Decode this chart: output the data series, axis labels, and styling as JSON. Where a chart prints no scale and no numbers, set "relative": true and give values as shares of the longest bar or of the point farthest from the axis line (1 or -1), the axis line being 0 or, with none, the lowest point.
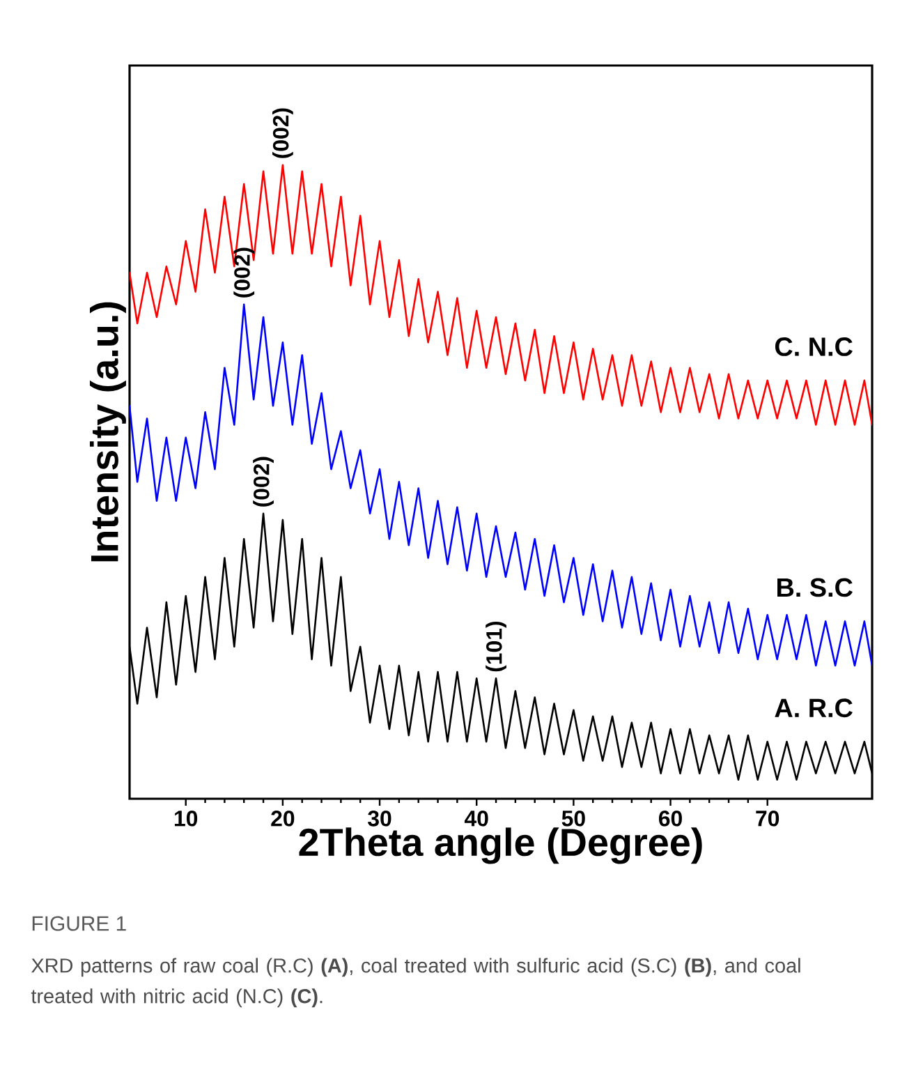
{
  "chart_data": {
    "type": "line",
    "relative": true,
    "xlabel": "2Theta angle (Degree)",
    "ylabel": "Intensity (a.u.)",
    "xlim": [
      4.2,
      80.8
    ],
    "xticks": [
      10,
      20,
      30,
      40,
      50,
      60,
      70
    ],
    "tick_labels": "x",
    "series": [
      {
        "name": "C. N.C",
        "color": "#ff0000",
        "x": [
          4.2,
          5,
          6,
          7,
          8,
          9,
          10,
          11,
          12,
          13,
          14,
          15,
          16,
          17,
          18,
          19,
          20,
          21,
          22,
          23,
          24,
          25,
          26,
          27,
          28,
          29,
          30,
          31,
          32,
          33,
          34,
          35,
          36,
          37,
          38,
          39,
          40,
          41,
          42,
          43,
          44,
          45,
          46,
          47,
          48,
          49,
          50,
          51,
          52,
          53,
          54,
          55,
          56,
          57,
          58,
          59,
          60,
          61,
          62,
          63,
          64,
          65,
          66,
          67,
          68,
          69,
          70,
          71,
          72,
          73,
          74,
          75,
          76,
          77,
          78,
          79,
          80,
          80.8
        ],
        "values": [
          0.83,
          0.75,
          0.83,
          0.76,
          0.84,
          0.78,
          0.88,
          0.8,
          0.93,
          0.83,
          0.95,
          0.84,
          0.97,
          0.85,
          0.99,
          0.86,
          1.0,
          0.86,
          0.99,
          0.86,
          0.97,
          0.84,
          0.95,
          0.81,
          0.92,
          0.78,
          0.88,
          0.76,
          0.85,
          0.73,
          0.82,
          0.72,
          0.8,
          0.7,
          0.79,
          0.68,
          0.77,
          0.68,
          0.76,
          0.67,
          0.75,
          0.66,
          0.74,
          0.64,
          0.73,
          0.64,
          0.72,
          0.63,
          0.71,
          0.63,
          0.7,
          0.62,
          0.7,
          0.62,
          0.69,
          0.61,
          0.68,
          0.61,
          0.68,
          0.61,
          0.67,
          0.6,
          0.67,
          0.6,
          0.66,
          0.6,
          0.66,
          0.6,
          0.66,
          0.6,
          0.66,
          0.59,
          0.66,
          0.59,
          0.66,
          0.59,
          0.66,
          0.59
        ]
      },
      {
        "name": "B. S.C",
        "color": "#0000ff",
        "x": [
          4.2,
          5,
          6,
          7,
          8,
          9,
          10,
          11,
          12,
          13,
          14,
          15,
          16,
          17,
          18,
          19,
          20,
          21,
          22,
          23,
          24,
          25,
          26,
          27,
          28,
          29,
          30,
          31,
          32,
          33,
          34,
          35,
          36,
          37,
          38,
          39,
          40,
          41,
          42,
          43,
          44,
          45,
          46,
          47,
          48,
          49,
          50,
          51,
          52,
          53,
          54,
          55,
          56,
          57,
          58,
          59,
          60,
          61,
          62,
          63,
          64,
          65,
          66,
          67,
          68,
          69,
          70,
          71,
          72,
          73,
          74,
          75,
          76,
          77,
          78,
          79,
          80,
          80.8
        ],
        "values": [
          0.62,
          0.5,
          0.6,
          0.47,
          0.57,
          0.47,
          0.57,
          0.49,
          0.61,
          0.52,
          0.68,
          0.59,
          0.78,
          0.63,
          0.76,
          0.62,
          0.72,
          0.59,
          0.7,
          0.56,
          0.64,
          0.52,
          0.58,
          0.49,
          0.55,
          0.45,
          0.52,
          0.41,
          0.5,
          0.4,
          0.49,
          0.38,
          0.47,
          0.37,
          0.46,
          0.36,
          0.45,
          0.35,
          0.43,
          0.35,
          0.42,
          0.33,
          0.41,
          0.32,
          0.4,
          0.31,
          0.38,
          0.29,
          0.37,
          0.28,
          0.36,
          0.27,
          0.35,
          0.26,
          0.34,
          0.25,
          0.33,
          0.24,
          0.32,
          0.24,
          0.31,
          0.23,
          0.31,
          0.23,
          0.3,
          0.22,
          0.29,
          0.22,
          0.29,
          0.22,
          0.29,
          0.21,
          0.28,
          0.21,
          0.28,
          0.21,
          0.28,
          0.21
        ]
      },
      {
        "name": "A. R.C",
        "color": "#000000",
        "x": [
          4.2,
          5,
          6,
          7,
          8,
          9,
          10,
          11,
          12,
          13,
          14,
          15,
          16,
          17,
          18,
          19,
          20,
          21,
          22,
          23,
          24,
          25,
          26,
          27,
          28,
          29,
          30,
          31,
          32,
          33,
          34,
          35,
          36,
          37,
          38,
          39,
          40,
          41,
          42,
          43,
          44,
          45,
          46,
          47,
          48,
          49,
          50,
          51,
          52,
          53,
          54,
          55,
          56,
          57,
          58,
          59,
          60,
          61,
          62,
          63,
          64,
          65,
          66,
          67,
          68,
          69,
          70,
          71,
          72,
          73,
          74,
          75,
          76,
          77,
          78,
          79,
          80,
          80.8
        ],
        "values": [
          0.24,
          0.15,
          0.27,
          0.16,
          0.31,
          0.18,
          0.32,
          0.2,
          0.35,
          0.22,
          0.38,
          0.24,
          0.41,
          0.27,
          0.45,
          0.28,
          0.44,
          0.26,
          0.41,
          0.22,
          0.38,
          0.21,
          0.35,
          0.17,
          0.24,
          0.12,
          0.21,
          0.11,
          0.21,
          0.1,
          0.2,
          0.09,
          0.2,
          0.09,
          0.2,
          0.09,
          0.19,
          0.09,
          0.19,
          0.08,
          0.17,
          0.08,
          0.16,
          0.07,
          0.15,
          0.07,
          0.14,
          0.06,
          0.13,
          0.06,
          0.13,
          0.05,
          0.12,
          0.05,
          0.12,
          0.04,
          0.11,
          0.04,
          0.11,
          0.04,
          0.1,
          0.04,
          0.1,
          0.03,
          0.1,
          0.03,
          0.09,
          0.03,
          0.09,
          0.03,
          0.09,
          0.04,
          0.09,
          0.04,
          0.09,
          0.04,
          0.09,
          0.04
        ]
      }
    ],
    "annotations": [
      {
        "text": "(002)",
        "x": 20,
        "y": 1.0
      },
      {
        "text": "(002)",
        "x": 16,
        "y": 0.78
      },
      {
        "text": "(002)",
        "x": 18,
        "y": 0.45
      },
      {
        "text": "(101)",
        "x": 42,
        "y": 0.19
      },
      "FIGURE 1",
      "XRD patterns of raw coal (R.C) **(A)**, coal treated with sulfuric acid (S.C) **(B)**, and coal treated with nitric acid (N.C) **(C)**."
    ]
  }
}
